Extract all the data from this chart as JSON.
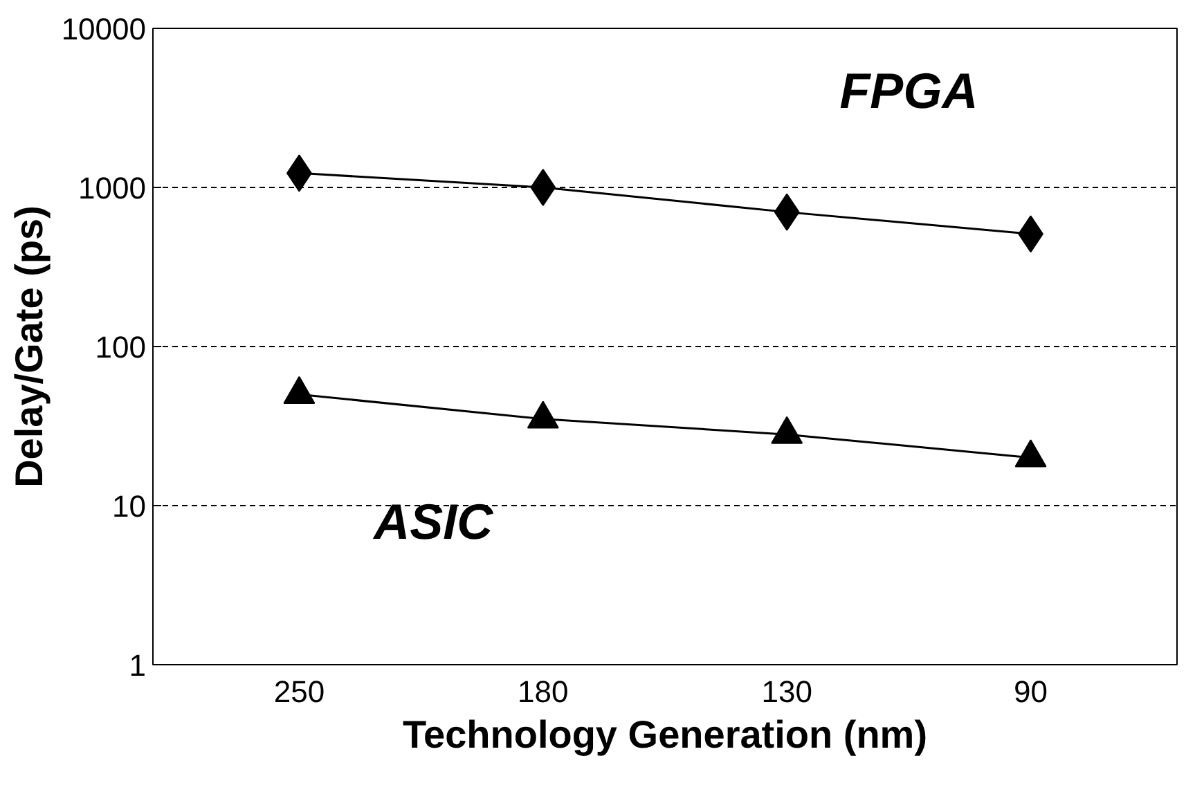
{
  "chart_data": {
    "type": "line",
    "xlabel": "Technology Generation (nm)",
    "ylabel": "Delay/Gate (ps)",
    "categories": [
      "250",
      "180",
      "130",
      "90"
    ],
    "series": [
      {
        "name": "FPGA",
        "color": "#000000",
        "marker": "diamond",
        "values": [
          1230,
          1000,
          700,
          510
        ]
      },
      {
        "name": "ASIC",
        "color": "#000000",
        "marker": "triangle",
        "values": [
          50,
          35,
          28,
          20
        ]
      }
    ],
    "log": "y",
    "ylim": [
      1,
      10000
    ],
    "yticks": [
      1,
      10,
      100,
      1000,
      10000
    ],
    "grid": "y",
    "line_style": "solid"
  }
}
